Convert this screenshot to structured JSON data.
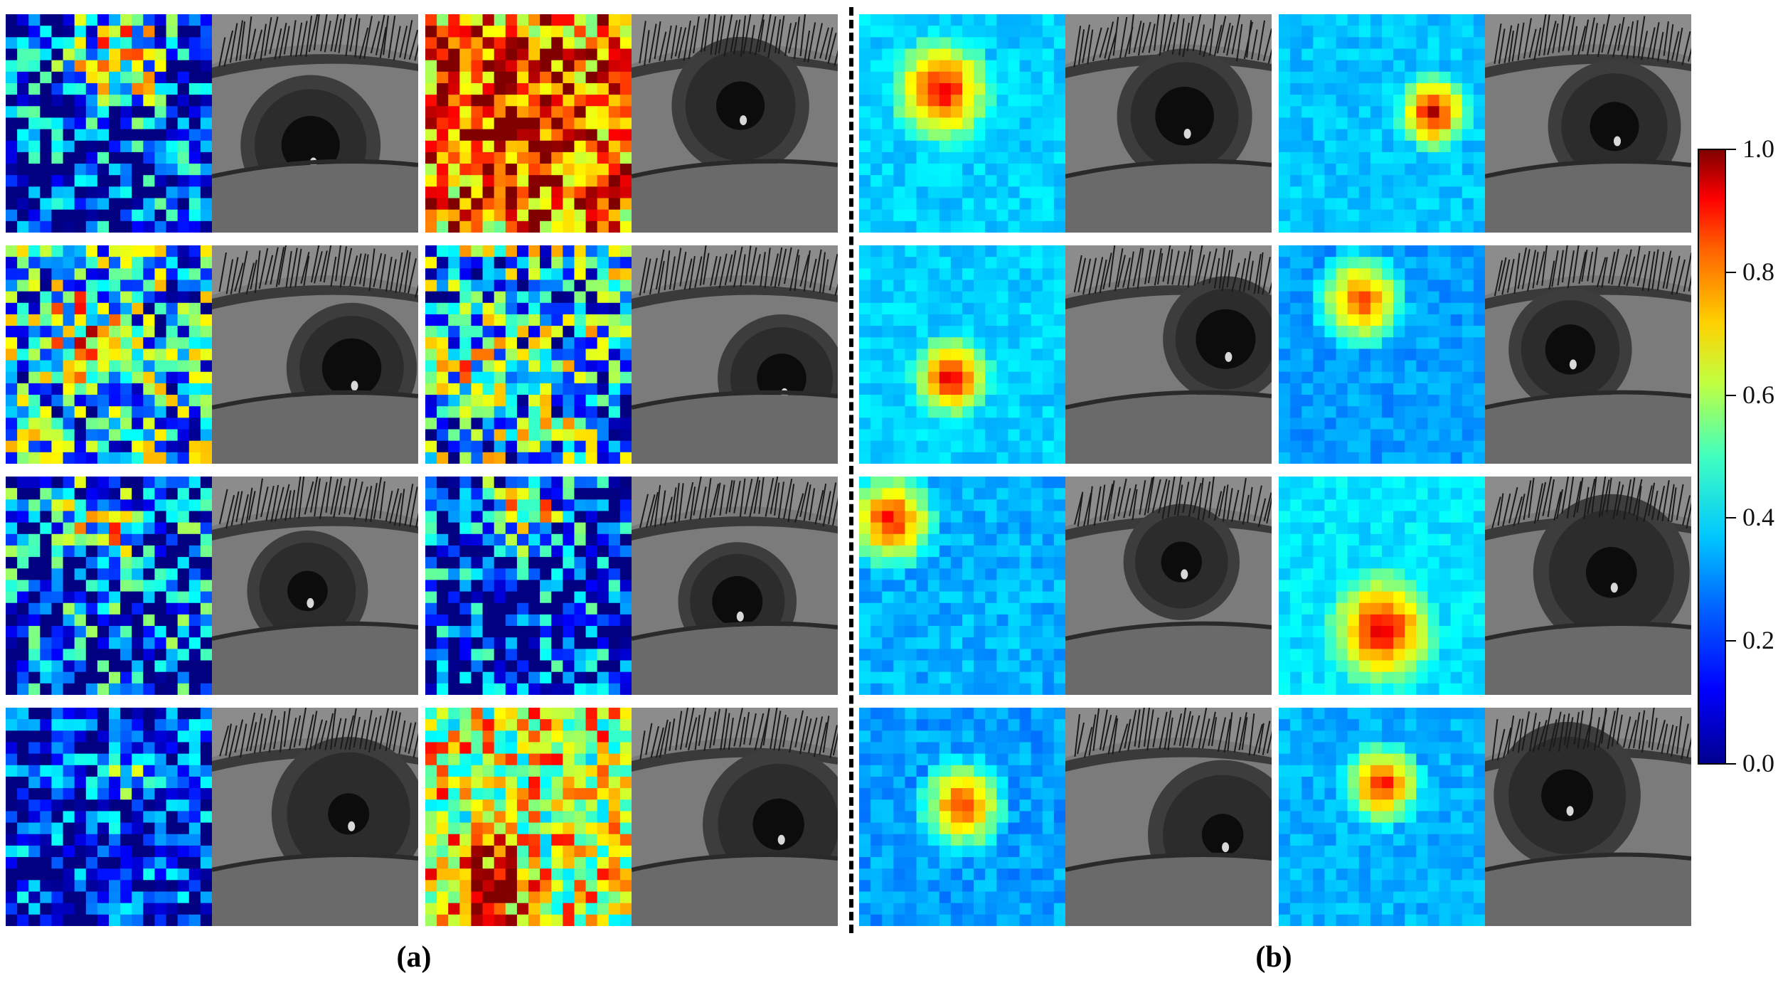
{
  "captions": {
    "a": "(a)",
    "b": "(b)"
  },
  "colorbar": {
    "ticks": [
      "1.0",
      "0.8",
      "0.6",
      "0.4",
      "0.2",
      "0.0"
    ],
    "colors": [
      "#00008f",
      "#0000ff",
      "#00c8ff",
      "#40ffc0",
      "#ffd000",
      "#ff0000",
      "#800000"
    ]
  },
  "figure_content": {
    "layout": "4 rows x 4 heatmap/eye pairs",
    "heatmap_style": "jet colormap, values 0.0 to 1.0",
    "eye_style": "grayscale near-infrared periocular crop"
  }
}
